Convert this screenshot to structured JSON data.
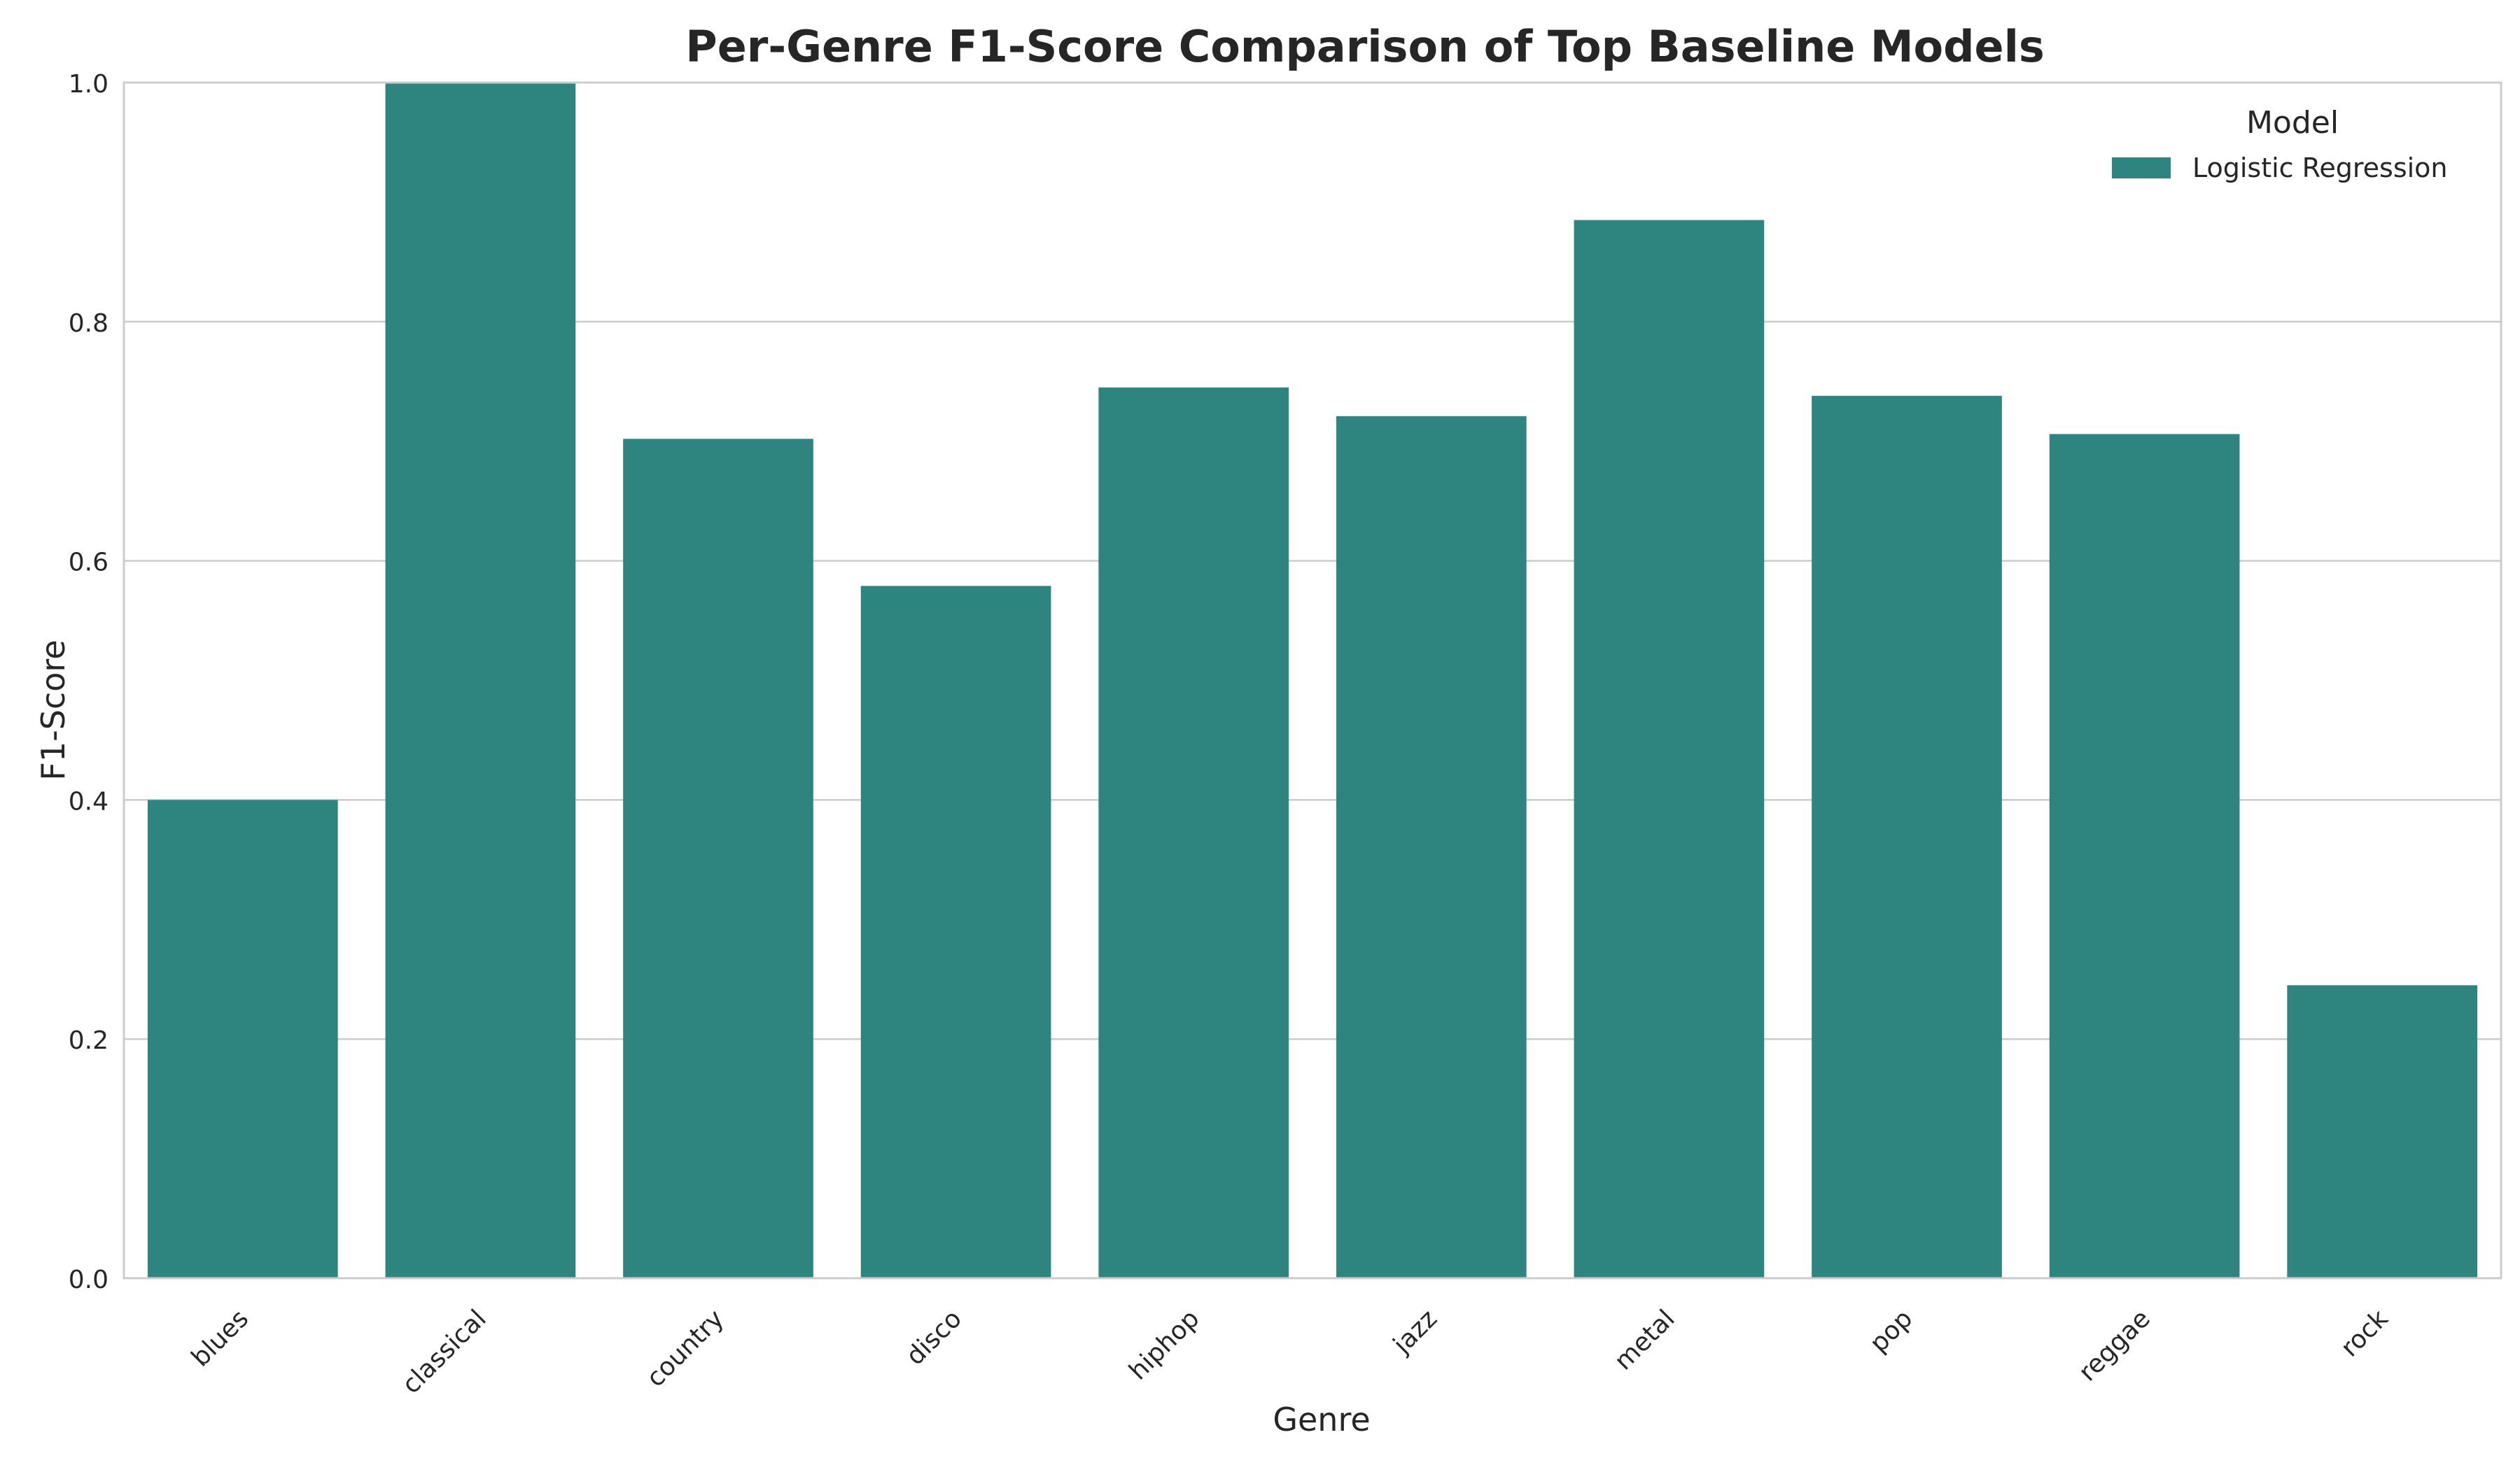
{
  "chart_data": {
    "type": "bar",
    "title": "Per-Genre F1-Score Comparison of Top Baseline Models",
    "xlabel": "Genre",
    "ylabel": "F1-Score",
    "ylim": [
      0,
      1.0
    ],
    "yticks": [
      0.0,
      0.2,
      0.4,
      0.6,
      0.8,
      1.0
    ],
    "ytick_labels": [
      "0.0",
      "0.2",
      "0.4",
      "0.6",
      "0.8",
      "1.0"
    ],
    "grid": true,
    "legend": {
      "title": "Model",
      "placement": "top-right"
    },
    "categories": [
      "blues",
      "classical",
      "country",
      "disco",
      "hiphop",
      "jazz",
      "metal",
      "pop",
      "reggae",
      "rock"
    ],
    "series": [
      {
        "name": "Logistic Regression",
        "color": "#2e8580",
        "values": [
          0.4,
          1.0,
          0.702,
          0.579,
          0.745,
          0.721,
          0.885,
          0.738,
          0.706,
          0.245
        ]
      }
    ]
  }
}
